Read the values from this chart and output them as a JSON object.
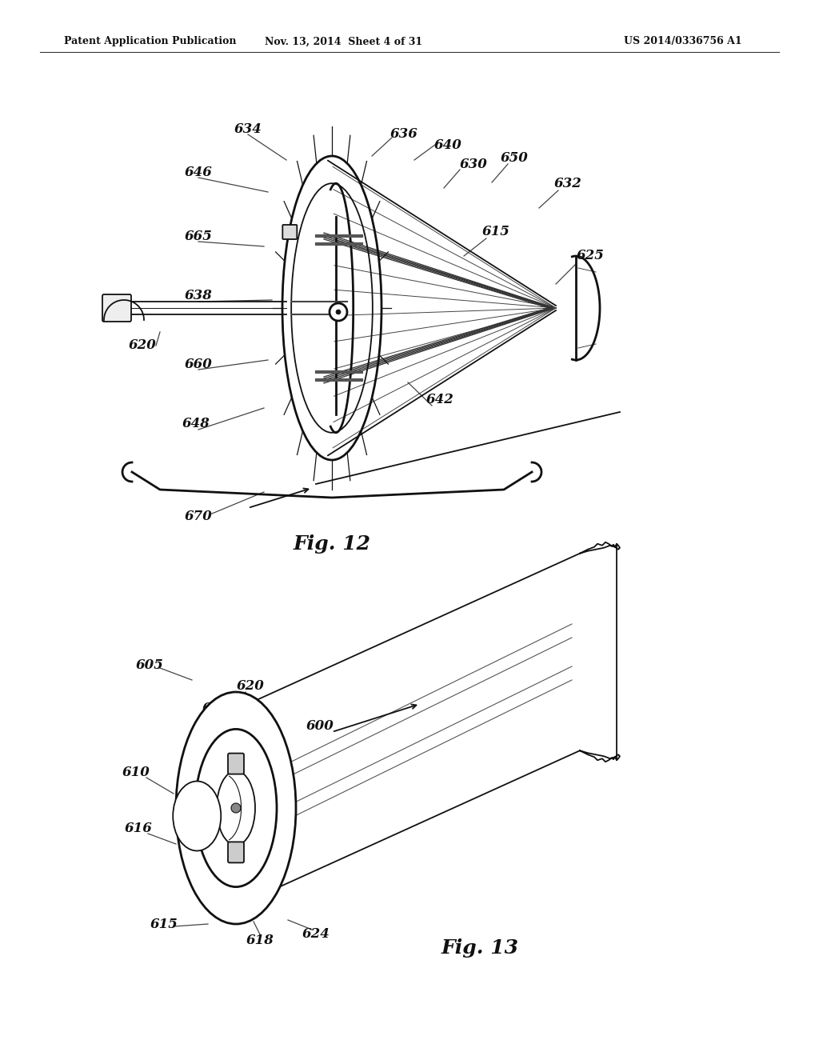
{
  "background_color": "#ffffff",
  "header_left": "Patent Application Publication",
  "header_center": "Nov. 13, 2014  Sheet 4 of 31",
  "header_right": "US 2014/0336756 A1",
  "fig12_label": "Fig. 12",
  "fig13_label": "Fig. 13",
  "line_color": "#111111",
  "label_color": "#111111"
}
